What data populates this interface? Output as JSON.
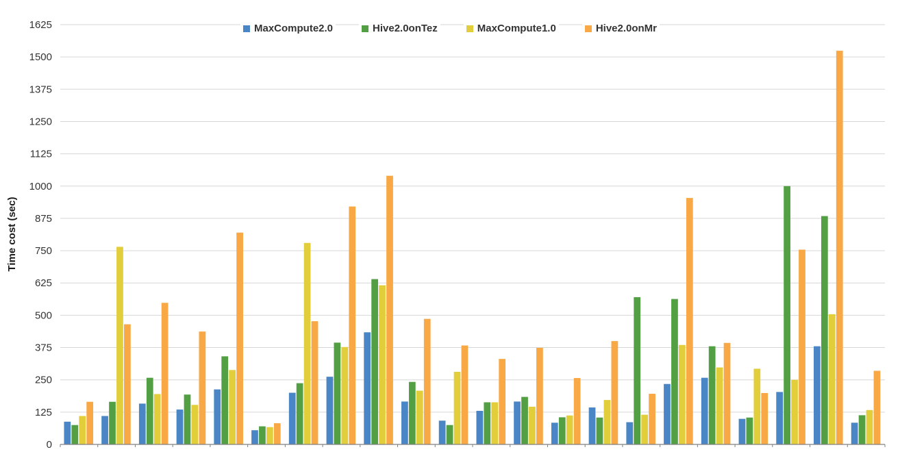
{
  "chart_data": {
    "type": "bar",
    "title": "",
    "xlabel": "",
    "ylabel": "Time cost (sec)",
    "ylim": [
      0,
      1625
    ],
    "yticks": [
      0,
      125,
      250,
      375,
      500,
      625,
      750,
      875,
      1000,
      1125,
      1250,
      1375,
      1500,
      1625
    ],
    "grid": true,
    "legend_position": "top-center",
    "grid_color": "#d6d6d6",
    "axis_color": "#808080",
    "group_count": 22,
    "series": [
      {
        "name": "MaxCompute2.0",
        "color": "#4a86c6",
        "values": [
          88,
          110,
          158,
          135,
          213,
          55,
          200,
          262,
          434,
          166,
          92,
          130,
          166,
          84,
          143,
          86,
          234,
          258,
          99,
          203,
          380,
          84
        ]
      },
      {
        "name": "Hive2.0onTez",
        "color": "#52a043",
        "values": [
          75,
          165,
          258,
          193,
          341,
          70,
          237,
          394,
          640,
          242,
          75,
          163,
          184,
          105,
          104,
          570,
          563,
          380,
          104,
          1000,
          884,
          113
        ]
      },
      {
        "name": "MaxCompute1.0",
        "color": "#e2ce3b",
        "values": [
          110,
          765,
          195,
          153,
          288,
          67,
          780,
          377,
          616,
          208,
          281,
          163,
          146,
          112,
          172,
          115,
          385,
          298,
          293,
          250,
          504,
          133
        ]
      },
      {
        "name": "Hive2.0onMr",
        "color": "#f8a844",
        "values": [
          165,
          465,
          548,
          437,
          820,
          82,
          477,
          921,
          1040,
          486,
          383,
          331,
          374,
          257,
          400,
          196,
          954,
          393,
          199,
          754,
          1524,
          285
        ]
      }
    ]
  }
}
